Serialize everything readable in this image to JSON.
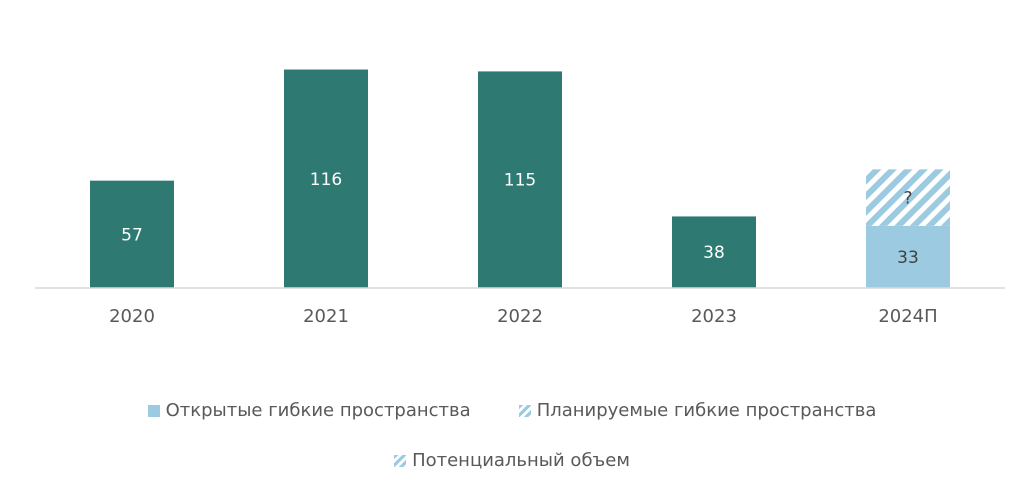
{
  "chart_data": {
    "type": "bar",
    "categories": [
      "2020",
      "2021",
      "2022",
      "2023",
      "2024П"
    ],
    "series": [
      {
        "name": "Открытые гибкие пространства",
        "values": [
          57,
          116,
          115,
          38,
          33
        ],
        "labels": [
          "57",
          "116",
          "115",
          "38",
          "33"
        ]
      },
      {
        "name": "Планируемые гибкие пространства",
        "values": [
          0,
          0,
          0,
          0,
          30
        ],
        "labels": [
          "",
          "",
          "",
          "",
          "?"
        ],
        "pattern": "hatch"
      }
    ],
    "stacked": true,
    "title": "",
    "xlabel": "",
    "ylabel": "",
    "ylim": [
      0,
      120
    ],
    "grid": false,
    "legend_position": "bottom",
    "colors": {
      "historic": "#2e7a72",
      "open": "#9ccae0",
      "planned": "#9ccae0",
      "axis": "#d9d9d9",
      "tick_text": "#595959",
      "label_light": "#ffffff",
      "label_dark": "#404040"
    }
  },
  "legend": {
    "items": [
      {
        "label": "Открытые гибкие пространства",
        "icon": "solid-square-icon"
      },
      {
        "label": "Планируемые гибкие пространства",
        "icon": "hatched-square-icon"
      },
      {
        "label": "Потенциальный объем",
        "icon": "hatched-slash-icon"
      }
    ]
  }
}
